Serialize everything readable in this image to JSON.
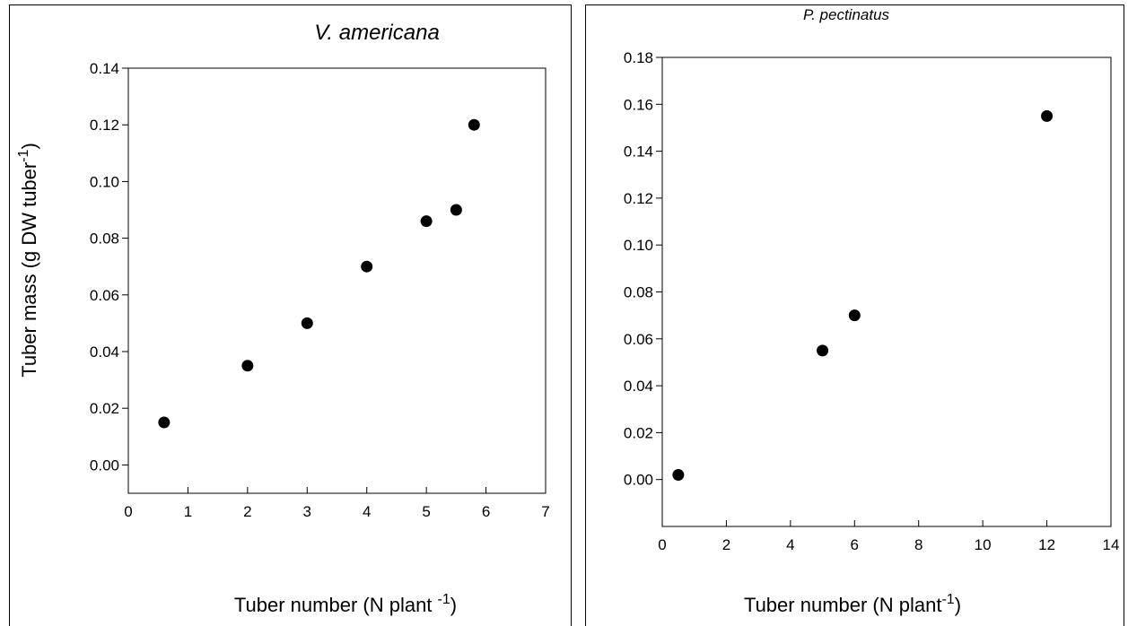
{
  "chart_data": [
    {
      "type": "scatter",
      "title": "V. americana",
      "x_label": {
        "main": "Tuber number (N plant ",
        "superscript": "-1",
        "end": ")"
      },
      "y_label": {
        "main": "Tuber mass (g DW tuber",
        "superscript": "-1",
        "end": ")"
      },
      "x": [
        0.6,
        2,
        3,
        4,
        5,
        5.5,
        5.8
      ],
      "values": [
        0.015,
        0.035,
        0.05,
        0.07,
        0.086,
        0.09,
        0.12
      ],
      "color": "#000000",
      "xlim": [
        0,
        7
      ],
      "ylim": [
        -0.01,
        0.14
      ],
      "xticks": [
        0,
        1,
        2,
        3,
        4,
        5,
        6,
        7
      ],
      "yticks": [
        {
          "value": 0,
          "label": "0.00"
        },
        0.02,
        0.04,
        0.06,
        0.08,
        {
          "value": 0.1,
          "label": "0.10"
        },
        0.12,
        0.14
      ]
    },
    {
      "type": "scatter",
      "title": "P. pectinatus",
      "x_label": {
        "main": "Tuber number (N plant",
        "superscript": "-1",
        "end": ")"
      },
      "x": [
        0.5,
        5,
        6,
        12
      ],
      "values": [
        0.002,
        0.055,
        0.07,
        0.155
      ],
      "color": "#000000",
      "xlim": [
        0,
        14
      ],
      "ylim": [
        -0.02,
        0.18
      ],
      "xticks": [
        0,
        2,
        4,
        6,
        8,
        10,
        12,
        14
      ],
      "yticks": [
        {
          "value": 0,
          "label": "0.00"
        },
        0.02,
        0.04,
        0.06,
        0.08,
        {
          "value": 0.1,
          "label": "0.10"
        },
        0.12,
        0.14,
        0.16,
        0.18
      ]
    }
  ]
}
